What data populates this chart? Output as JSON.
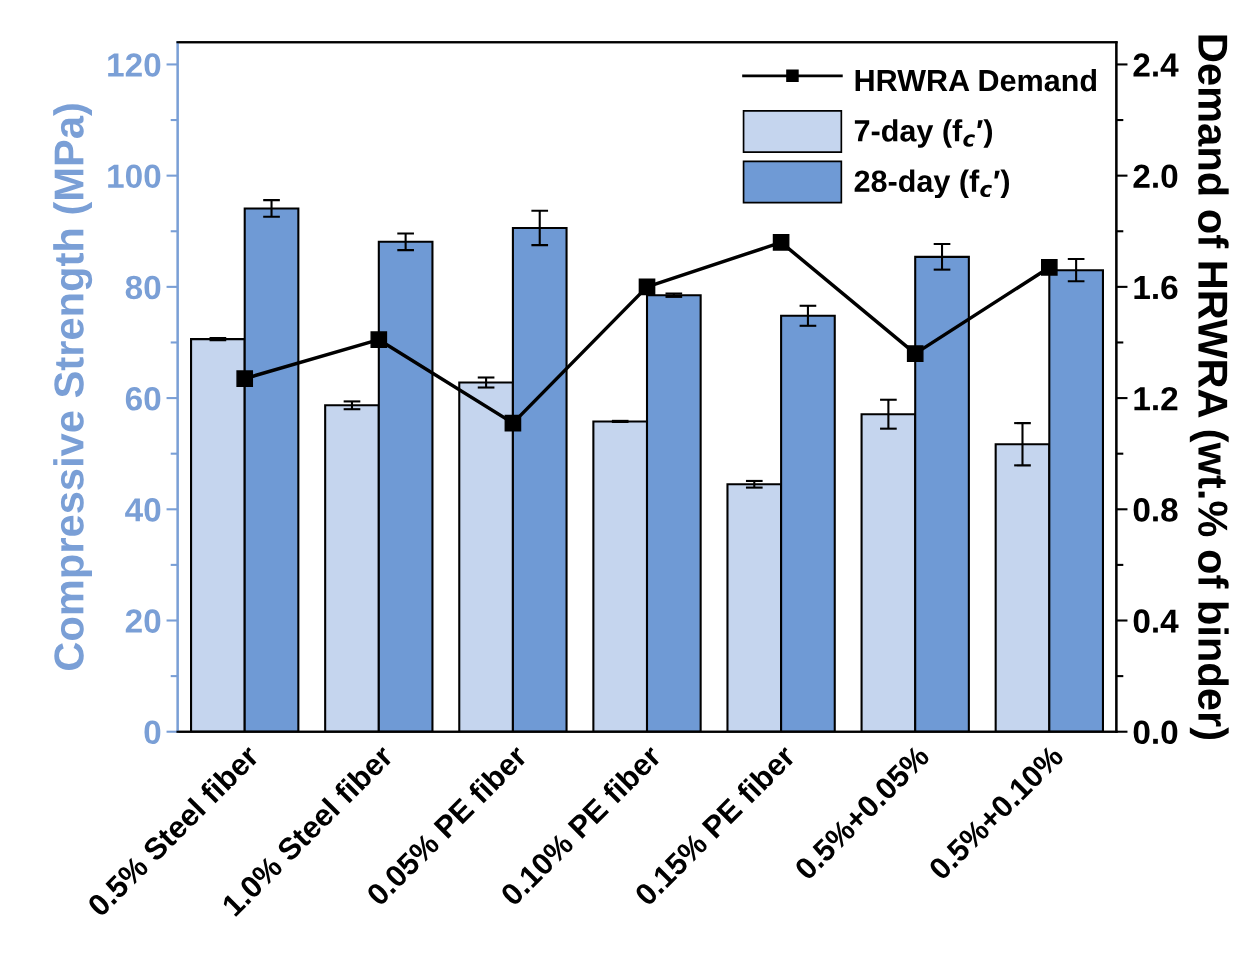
{
  "chart_data": {
    "type": "bar",
    "ylabel": "Compressive Strength (MPa)",
    "y2label": "Demand of HRWRA (wt.% of binder)",
    "categories": [
      "0.5% Steel fiber",
      "1.0% Steel fiber",
      "0.05% PE fiber",
      "0.10% PE fiber",
      "0.15% PE fiber",
      "0.5%+0.05%",
      "0.5%+0.10%"
    ],
    "series": [
      {
        "name": "HRWRA Demand",
        "type": "line",
        "axis": "y2",
        "color": "#000000",
        "marker": "square",
        "line_style": "solid",
        "values": [
          1.27,
          1.41,
          1.11,
          1.6,
          1.76,
          1.36,
          1.67
        ]
      },
      {
        "name": "7-day (f$_{c}$′)",
        "color": "#c5d5ee",
        "values": [
          70.6,
          58.7,
          62.8,
          55.8,
          44.5,
          57.1,
          51.7
        ],
        "errors": [
          0.2,
          0.7,
          0.9,
          0.1,
          0.6,
          2.6,
          3.8
        ]
      },
      {
        "name": "28-day (f$_{c}$′)",
        "color": "#6f9ad5",
        "values": [
          94.1,
          88.1,
          90.6,
          78.5,
          74.8,
          85.4,
          83.0
        ],
        "errors": [
          1.5,
          1.5,
          3.1,
          0.3,
          1.8,
          2.3,
          2.0
        ]
      }
    ],
    "ylim": [
      0,
      124
    ],
    "yticks": [
      0,
      20,
      40,
      60,
      80,
      100,
      120
    ],
    "y2lim": [
      0,
      2.48
    ],
    "y2ticks": [
      {
        "value": 0,
        "label": "0.0"
      },
      0.4,
      0.8,
      1.2,
      1.6,
      {
        "value": 2,
        "label": "2.0"
      },
      2.4
    ],
    "grid": false,
    "legend": "top right"
  }
}
